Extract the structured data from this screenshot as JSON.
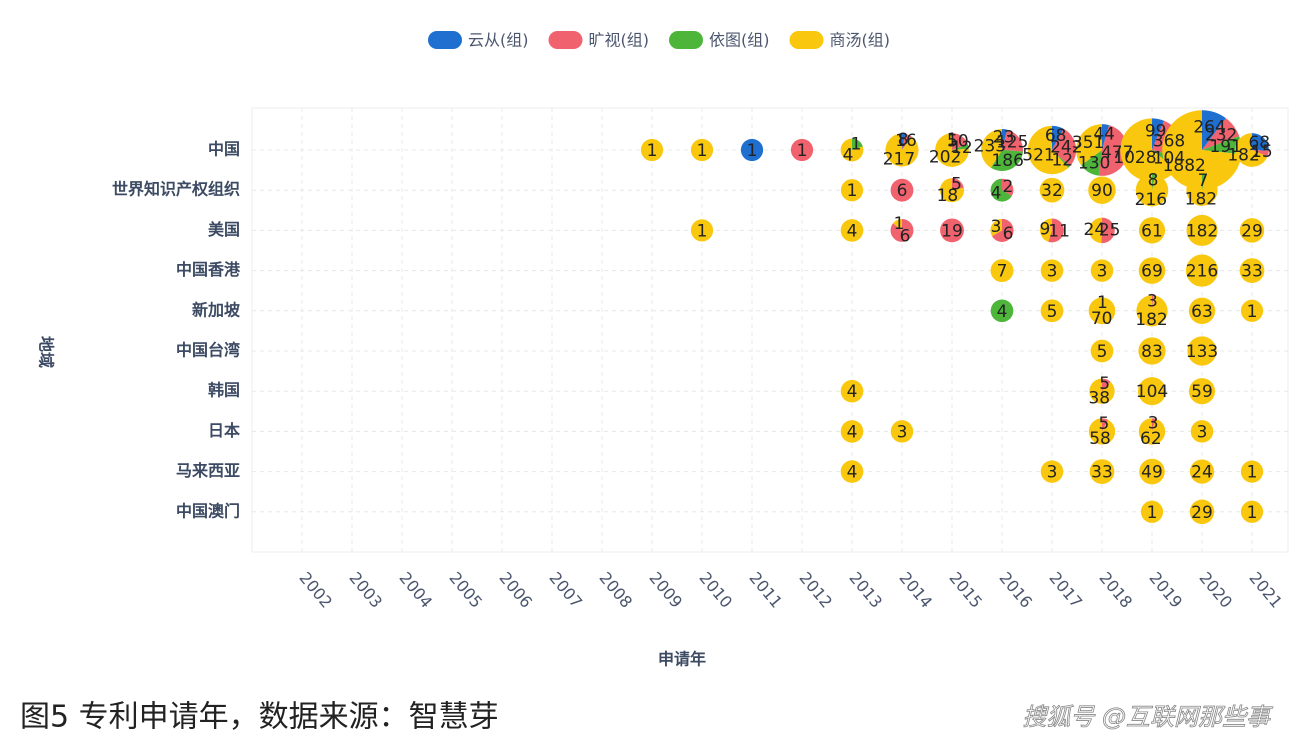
{
  "chart_data": {
    "type": "pie-bubble",
    "x_label": "申请年",
    "y_label": "地域",
    "caption": "图5 专利申请年，数据来源：智慧芽",
    "watermark": "搜狐号 @互联网那些事",
    "series": [
      {
        "name": "云从(组)",
        "color": "#1f6fd1"
      },
      {
        "name": "旷视(组)",
        "color": "#f0636e"
      },
      {
        "name": "依图(组)",
        "color": "#4cb53a"
      },
      {
        "name": "商汤(组)",
        "color": "#f9c80e"
      }
    ],
    "x_categories": [
      "2002",
      "2003",
      "2004",
      "2005",
      "2006",
      "2007",
      "2008",
      "2009",
      "2010",
      "2011",
      "2012",
      "2013",
      "2014",
      "2015",
      "2016",
      "2017",
      "2018",
      "2019",
      "2020",
      "2021"
    ],
    "y_categories": [
      "中国",
      "世界知识产权组织",
      "美国",
      "中国香港",
      "新加坡",
      "中国台湾",
      "韩国",
      "日本",
      "马来西亚",
      "中国澳门"
    ],
    "points": [
      {
        "x": "2009",
        "y": "中国",
        "values": [
          null,
          null,
          null,
          1
        ]
      },
      {
        "x": "2010",
        "y": "中国",
        "values": [
          null,
          null,
          null,
          1
        ]
      },
      {
        "x": "2011",
        "y": "中国",
        "values": [
          1,
          null,
          null,
          null
        ]
      },
      {
        "x": "2012",
        "y": "中国",
        "values": [
          null,
          1,
          null,
          null
        ]
      },
      {
        "x": "2013",
        "y": "中国",
        "values": [
          null,
          null,
          1,
          4
        ]
      },
      {
        "x": "2014",
        "y": "中国",
        "values": [
          8,
          16,
          null,
          217
        ]
      },
      {
        "x": "2015",
        "y": "中国",
        "values": [
          1,
          50,
          12,
          202
        ]
      },
      {
        "x": "2016",
        "y": "中国",
        "values": [
          23,
          125,
          186,
          233
        ]
      },
      {
        "x": "2017",
        "y": "中国",
        "values": [
          68,
          242,
          12,
          521
        ]
      },
      {
        "x": "2018",
        "y": "中国",
        "values": [
          44,
          477,
          130,
          351
        ]
      },
      {
        "x": "2019",
        "y": "中国",
        "values": [
          99,
          368,
          104,
          1028
        ]
      },
      {
        "x": "2020",
        "y": "中国",
        "values": [
          264,
          232,
          191,
          1882
        ]
      },
      {
        "x": "2021",
        "y": "中国",
        "values": [
          68,
          15,
          null,
          182
        ]
      },
      {
        "x": "2013",
        "y": "世界知识产权组织",
        "values": [
          null,
          null,
          null,
          1
        ]
      },
      {
        "x": "2014",
        "y": "世界知识产权组织",
        "values": [
          null,
          6,
          null,
          null
        ]
      },
      {
        "x": "2015",
        "y": "世界知识产权组织",
        "values": [
          null,
          5,
          null,
          18
        ]
      },
      {
        "x": "2016",
        "y": "世界知识产权组织",
        "values": [
          null,
          2,
          4,
          null
        ]
      },
      {
        "x": "2017",
        "y": "世界知识产权组织",
        "values": [
          null,
          null,
          null,
          32
        ]
      },
      {
        "x": "2018",
        "y": "世界知识产权组织",
        "values": [
          null,
          null,
          null,
          90
        ]
      },
      {
        "x": "2019",
        "y": "世界知识产权组织",
        "values": [
          null,
          null,
          8,
          216
        ]
      },
      {
        "x": "2020",
        "y": "世界知识产权组织",
        "values": [
          null,
          null,
          7,
          182
        ]
      },
      {
        "x": "2010",
        "y": "美国",
        "values": [
          null,
          null,
          null,
          1
        ]
      },
      {
        "x": "2013",
        "y": "美国",
        "values": [
          null,
          null,
          null,
          4
        ]
      },
      {
        "x": "2014",
        "y": "美国",
        "values": [
          null,
          6,
          null,
          1
        ]
      },
      {
        "x": "2015",
        "y": "美国",
        "values": [
          null,
          19,
          null,
          null
        ]
      },
      {
        "x": "2016",
        "y": "美国",
        "values": [
          null,
          6,
          null,
          3
        ]
      },
      {
        "x": "2017",
        "y": "美国",
        "values": [
          null,
          11,
          null,
          9
        ]
      },
      {
        "x": "2018",
        "y": "美国",
        "values": [
          null,
          25,
          null,
          24
        ]
      },
      {
        "x": "2019",
        "y": "美国",
        "values": [
          null,
          null,
          null,
          61
        ]
      },
      {
        "x": "2020",
        "y": "美国",
        "values": [
          null,
          null,
          null,
          182
        ]
      },
      {
        "x": "2021",
        "y": "美国",
        "values": [
          null,
          null,
          null,
          29
        ]
      },
      {
        "x": "2016",
        "y": "中国香港",
        "values": [
          null,
          null,
          null,
          7
        ]
      },
      {
        "x": "2017",
        "y": "中国香港",
        "values": [
          null,
          null,
          null,
          3
        ]
      },
      {
        "x": "2018",
        "y": "中国香港",
        "values": [
          null,
          null,
          null,
          3
        ]
      },
      {
        "x": "2019",
        "y": "中国香港",
        "values": [
          null,
          null,
          null,
          69
        ]
      },
      {
        "x": "2020",
        "y": "中国香港",
        "values": [
          null,
          null,
          null,
          216
        ]
      },
      {
        "x": "2021",
        "y": "中国香港",
        "values": [
          null,
          null,
          null,
          33
        ]
      },
      {
        "x": "2016",
        "y": "新加坡",
        "values": [
          null,
          null,
          4,
          null
        ]
      },
      {
        "x": "2017",
        "y": "新加坡",
        "values": [
          null,
          null,
          null,
          5
        ]
      },
      {
        "x": "2018",
        "y": "新加坡",
        "values": [
          null,
          1,
          null,
          70
        ]
      },
      {
        "x": "2019",
        "y": "新加坡",
        "values": [
          null,
          3,
          null,
          182
        ]
      },
      {
        "x": "2020",
        "y": "新加坡",
        "values": [
          null,
          null,
          null,
          63
        ]
      },
      {
        "x": "2021",
        "y": "新加坡",
        "values": [
          null,
          null,
          null,
          1
        ]
      },
      {
        "x": "2018",
        "y": "中国台湾",
        "values": [
          null,
          null,
          null,
          5
        ]
      },
      {
        "x": "2019",
        "y": "中国台湾",
        "values": [
          null,
          null,
          null,
          83
        ]
      },
      {
        "x": "2020",
        "y": "中国台湾",
        "values": [
          null,
          null,
          null,
          133
        ]
      },
      {
        "x": "2013",
        "y": "韩国",
        "values": [
          null,
          null,
          null,
          4
        ]
      },
      {
        "x": "2018",
        "y": "韩国",
        "values": [
          null,
          5,
          null,
          38
        ]
      },
      {
        "x": "2019",
        "y": "韩国",
        "values": [
          null,
          null,
          null,
          104
        ]
      },
      {
        "x": "2020",
        "y": "韩国",
        "values": [
          null,
          null,
          null,
          59
        ]
      },
      {
        "x": "2013",
        "y": "日本",
        "values": [
          null,
          null,
          null,
          4
        ]
      },
      {
        "x": "2014",
        "y": "日本",
        "values": [
          null,
          null,
          null,
          3
        ]
      },
      {
        "x": "2018",
        "y": "日本",
        "values": [
          null,
          5,
          null,
          58
        ]
      },
      {
        "x": "2019",
        "y": "日本",
        "values": [
          null,
          3,
          null,
          62
        ]
      },
      {
        "x": "2020",
        "y": "日本",
        "values": [
          null,
          null,
          null,
          3
        ]
      },
      {
        "x": "2013",
        "y": "马来西亚",
        "values": [
          null,
          null,
          null,
          4
        ]
      },
      {
        "x": "2017",
        "y": "马来西亚",
        "values": [
          null,
          null,
          null,
          3
        ]
      },
      {
        "x": "2018",
        "y": "马来西亚",
        "values": [
          null,
          null,
          null,
          33
        ]
      },
      {
        "x": "2019",
        "y": "马来西亚",
        "values": [
          null,
          null,
          null,
          49
        ]
      },
      {
        "x": "2020",
        "y": "马来西亚",
        "values": [
          null,
          null,
          null,
          24
        ]
      },
      {
        "x": "2021",
        "y": "马来西亚",
        "values": [
          null,
          null,
          null,
          1
        ]
      },
      {
        "x": "2019",
        "y": "中国澳门",
        "values": [
          null,
          null,
          null,
          1
        ]
      },
      {
        "x": "2020",
        "y": "中国澳门",
        "values": [
          null,
          null,
          null,
          29
        ]
      },
      {
        "x": "2021",
        "y": "中国澳门",
        "values": [
          null,
          null,
          null,
          1
        ]
      }
    ]
  }
}
